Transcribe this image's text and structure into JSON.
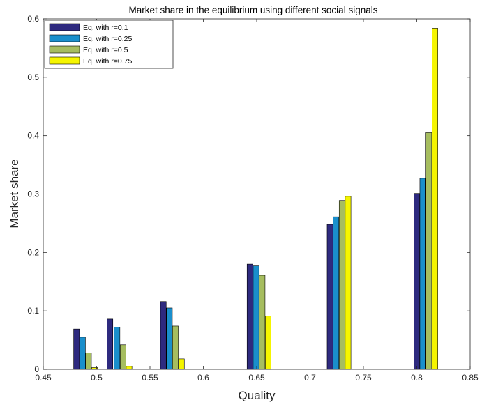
{
  "chart_data": {
    "type": "bar",
    "title": "Market share in the equilibrium using different social signals",
    "xlabel": "Quality",
    "ylabel": "Market share",
    "xlim": [
      0.45,
      0.85
    ],
    "ylim": [
      0,
      0.6
    ],
    "xticks": [
      "0.45",
      "0.5",
      "0.55",
      "0.6",
      "0.65",
      "0.7",
      "0.75",
      "0.8",
      "0.85"
    ],
    "yticks": [
      "0",
      "0.1",
      "0.2",
      "0.3",
      "0.4",
      "0.5",
      "0.6"
    ],
    "grid": false,
    "legend_position": "top-left",
    "series": [
      {
        "name": "Eq. with r=0.1",
        "color": "#2e2a7f",
        "x": [
          0.4812,
          0.5125,
          0.5625,
          0.6437,
          0.7187,
          0.8
        ],
        "values": [
          0.069,
          0.086,
          0.116,
          0.18,
          0.248,
          0.301
        ]
      },
      {
        "name": "Eq. with r=0.25",
        "color": "#1a8fcc",
        "x": [
          0.4868,
          0.5191,
          0.5682,
          0.6494,
          0.7243,
          0.8056
        ],
        "values": [
          0.055,
          0.072,
          0.105,
          0.177,
          0.261,
          0.327
        ]
      },
      {
        "name": "Eq. with r=0.5",
        "color": "#a6bd5f",
        "x": [
          0.4924,
          0.5248,
          0.5738,
          0.6551,
          0.73,
          0.8113
        ],
        "values": [
          0.028,
          0.042,
          0.074,
          0.161,
          0.289,
          0.405
        ]
      },
      {
        "name": "Eq. with r=0.75",
        "color": "#f5f500",
        "x": [
          0.4981,
          0.5304,
          0.5795,
          0.6608,
          0.7356,
          0.817
        ],
        "values": [
          0.003,
          0.005,
          0.018,
          0.091,
          0.296,
          0.584
        ]
      }
    ]
  }
}
